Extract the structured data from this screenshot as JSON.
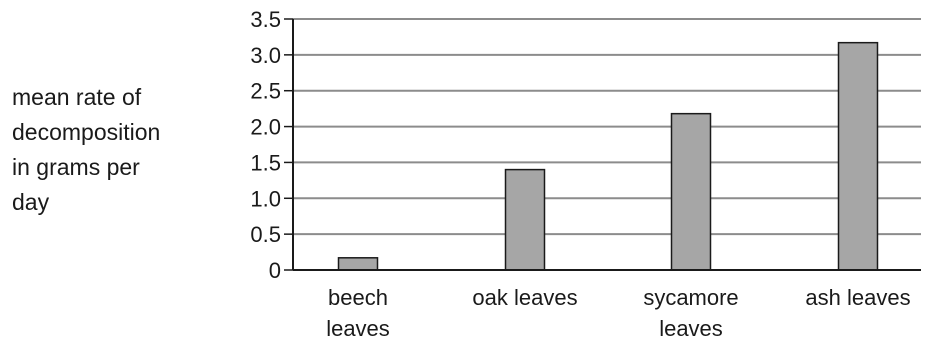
{
  "chart_data": {
    "type": "bar",
    "categories": [
      [
        "beech",
        "leaves"
      ],
      [
        "oak leaves"
      ],
      [
        "sycamore",
        "leaves"
      ],
      [
        "ash leaves"
      ]
    ],
    "values": [
      0.17,
      1.4,
      2.18,
      3.17
    ],
    "ylabel_lines": [
      "mean rate of",
      "decomposition",
      "in grams per",
      "day"
    ],
    "yticks": [
      "0",
      "0.5",
      "1.0",
      "1.5",
      "2.0",
      "2.5",
      "3.0",
      "3.5"
    ],
    "ylim": [
      0,
      3.5
    ],
    "grid": true,
    "bar_color": "#a6a6a6",
    "gridline_color": "#8c8c8c"
  }
}
